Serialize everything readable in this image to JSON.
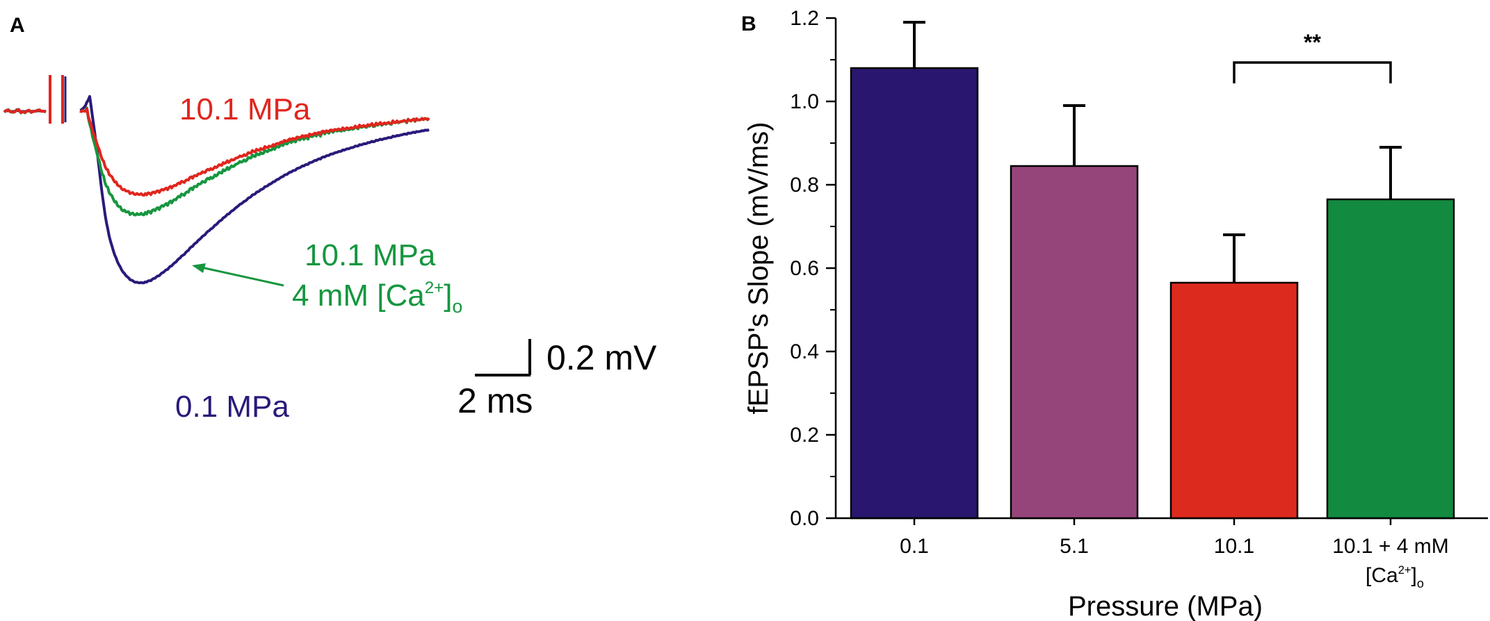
{
  "panel_a": {
    "label": "A",
    "traces": [
      {
        "name": "0.1 MPa",
        "label": "0.1 MPa",
        "color": "#2a1a7a",
        "peak_mv": -0.95
      },
      {
        "name": "10.1 MPa",
        "label": "10.1 MPa",
        "color": "#e0261e",
        "peak_mv": -0.46
      },
      {
        "name": "10.1 MPa 4 mM [Ca2+]o",
        "label_line1": "10.1 MPa",
        "label_line2_main": "4 mM [Ca",
        "label_line2_sup": "2+",
        "label_line2_close": "]",
        "label_line2_sub": "o",
        "color": "#16963f",
        "peak_mv": -0.57
      }
    ],
    "scale_bar": {
      "voltage": "0.2 mV",
      "time": "2 ms"
    }
  },
  "panel_b": {
    "label": "B"
  },
  "chart_data": {
    "type": "bar",
    "categories": [
      "0.1",
      "5.1",
      "10.1",
      "10.1 + 4 mM [Ca2+]o"
    ],
    "category_labels": [
      {
        "line1": "0.1"
      },
      {
        "line1": "5.1"
      },
      {
        "line1": "10.1"
      },
      {
        "line1": "10.1 + 4 mM",
        "line2_main": "[Ca",
        "line2_sup": "2+",
        "line2_close": "]",
        "line2_sub": "o"
      }
    ],
    "values": [
      1.08,
      0.845,
      0.565,
      0.765
    ],
    "errors": [
      0.11,
      0.145,
      0.115,
      0.125
    ],
    "colors": [
      "#29166f",
      "#96457a",
      "#dd2a1f",
      "#128a3f"
    ],
    "xlabel": "Pressure (MPa)",
    "ylabel": "fEPSP's Slope (mV/ms)",
    "ylim": [
      0,
      1.2
    ],
    "yticks": [
      "0.0",
      "0.2",
      "0.4",
      "0.6",
      "0.8",
      "1.0",
      "1.2"
    ],
    "significance": {
      "from": 2,
      "to": 3,
      "text": "**"
    }
  }
}
